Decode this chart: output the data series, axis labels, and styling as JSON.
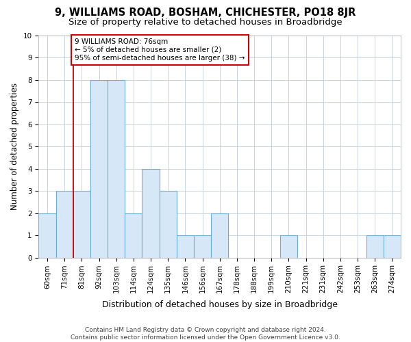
{
  "title": "9, WILLIAMS ROAD, BOSHAM, CHICHESTER, PO18 8JR",
  "subtitle": "Size of property relative to detached houses in Broadbridge",
  "xlabel": "Distribution of detached houses by size in Broadbridge",
  "ylabel": "Number of detached properties",
  "bar_labels": [
    "60sqm",
    "71sqm",
    "81sqm",
    "92sqm",
    "103sqm",
    "114sqm",
    "124sqm",
    "135sqm",
    "146sqm",
    "156sqm",
    "167sqm",
    "178sqm",
    "188sqm",
    "199sqm",
    "210sqm",
    "221sqm",
    "231sqm",
    "242sqm",
    "253sqm",
    "263sqm",
    "274sqm"
  ],
  "bar_heights": [
    2,
    3,
    3,
    8,
    8,
    2,
    4,
    3,
    1,
    1,
    2,
    0,
    0,
    0,
    1,
    0,
    0,
    0,
    0,
    1,
    1
  ],
  "bar_color": "#d6e8f7",
  "bar_edge_color": "#6aaed6",
  "grid_color": "#c8d4e0",
  "annotation_line1": "9 WILLIAMS ROAD: 76sqm",
  "annotation_line2": "← 5% of detached houses are smaller (2)",
  "annotation_line3": "95% of semi-detached houses are larger (38) →",
  "vline_color": "#cc0000",
  "vline_pos": 1.5,
  "ylim": [
    0,
    10
  ],
  "yticks": [
    0,
    1,
    2,
    3,
    4,
    5,
    6,
    7,
    8,
    9,
    10
  ],
  "footnote_line1": "Contains HM Land Registry data © Crown copyright and database right 2024.",
  "footnote_line2": "Contains public sector information licensed under the Open Government Licence v3.0.",
  "title_fontsize": 10.5,
  "subtitle_fontsize": 9.5,
  "ylabel_fontsize": 8.5,
  "xlabel_fontsize": 9,
  "tick_fontsize": 7.5,
  "annotation_fontsize": 7.5,
  "footnote_fontsize": 6.5
}
